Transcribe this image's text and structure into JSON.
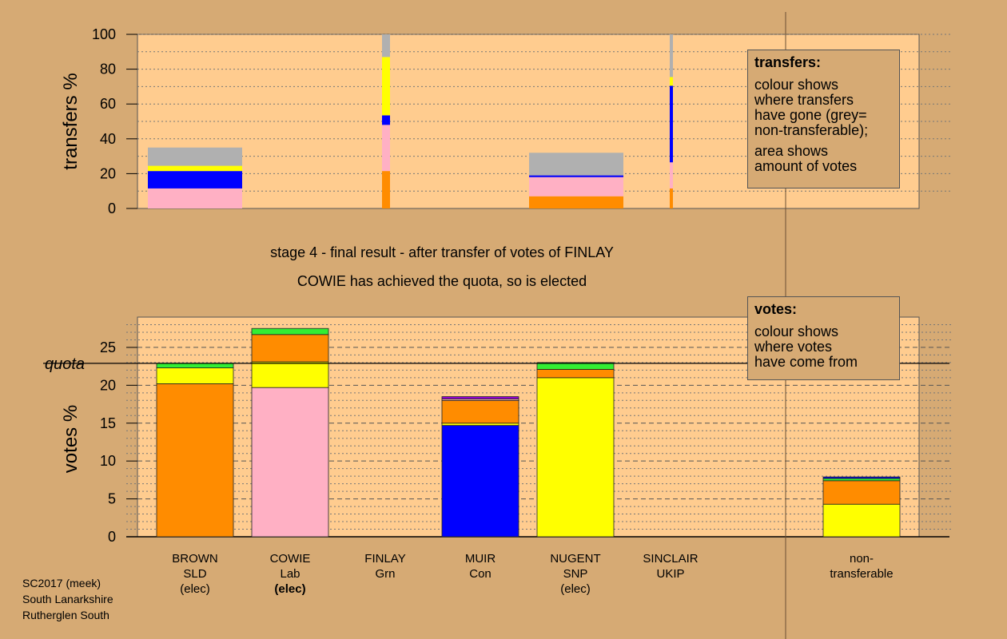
{
  "chart_data": [
    {
      "id": "transfers",
      "type": "bar",
      "ylabel": "transfers %",
      "ylim": [
        0,
        100
      ],
      "yticks": [
        0,
        20,
        40,
        60,
        80,
        100
      ],
      "blocks": [
        {
          "name": "BROWN",
          "segments": [
            {
              "value": 11.5,
              "color": "#ffb0c4"
            },
            {
              "value": 10,
              "color": "#0000ff"
            },
            {
              "value": 3,
              "color": "#ffff00"
            },
            {
              "value": 10.5,
              "color": "#b0b0b0"
            }
          ]
        },
        {
          "name": "FINLAY",
          "segments": [
            {
              "value": 21.5,
              "color": "#ff8c00"
            },
            {
              "value": 26.5,
              "color": "#ffb0c4"
            },
            {
              "value": 5.5,
              "color": "#0000ff"
            },
            {
              "value": 33.5,
              "color": "#ffff00"
            },
            {
              "value": 13,
              "color": "#b0b0b0"
            }
          ]
        },
        {
          "name": "MUIR",
          "segments": [
            {
              "value": 7,
              "color": "#ff8c00"
            },
            {
              "value": 11,
              "color": "#ffb0c4"
            },
            {
              "value": 1,
              "color": "#0000ff"
            },
            {
              "value": 13,
              "color": "#b0b0b0"
            }
          ]
        },
        {
          "name": "SINCLAIR",
          "segments": [
            {
              "value": 11.5,
              "color": "#ff8c00"
            },
            {
              "value": 15,
              "color": "#ffb0c4"
            },
            {
              "value": 44,
              "color": "#0000ff"
            },
            {
              "value": 5,
              "color": "#ffff00"
            },
            {
              "value": 24.5,
              "color": "#b0b0b0"
            }
          ]
        }
      ]
    },
    {
      "id": "votes",
      "type": "bar",
      "ylabel": "votes %",
      "ylim": [
        0,
        29
      ],
      "yticks": [
        0,
        5,
        10,
        15,
        20,
        25
      ],
      "quota": 22.9,
      "quota_label": "quota",
      "categories": [
        "BROWN",
        "COWIE",
        "FINLAY",
        "MUIR",
        "NUGENT",
        "SINCLAIR",
        "non-transferable"
      ],
      "stacks": [
        {
          "name": "BROWN",
          "segments": [
            {
              "value": 20.2,
              "color": "#ff8c00"
            },
            {
              "value": 2.1,
              "color": "#ffff00"
            },
            {
              "value": 0.6,
              "color": "#33ee33"
            }
          ]
        },
        {
          "name": "COWIE",
          "segments": [
            {
              "value": 19.7,
              "color": "#ffb0c4"
            },
            {
              "value": 3.4,
              "color": "#ffff00"
            },
            {
              "value": 3.6,
              "color": "#ff8c00"
            },
            {
              "value": 0.8,
              "color": "#33ee33"
            }
          ]
        },
        {
          "name": "FINLAY",
          "segments": []
        },
        {
          "name": "MUIR",
          "segments": [
            {
              "value": 14.7,
              "color": "#0000ff"
            },
            {
              "value": 0.3,
              "color": "#ffff00"
            },
            {
              "value": 3.0,
              "color": "#ff8c00"
            },
            {
              "value": 0.2,
              "color": "#ffb0c4"
            },
            {
              "value": 0.3,
              "color": "#9400d3"
            }
          ]
        },
        {
          "name": "NUGENT",
          "segments": [
            {
              "value": 21.0,
              "color": "#ffff00"
            },
            {
              "value": 1.1,
              "color": "#ff8c00"
            },
            {
              "value": 0.9,
              "color": "#33ee33"
            }
          ]
        },
        {
          "name": "SINCLAIR",
          "segments": []
        },
        {
          "name": "non-transferable",
          "segments": [
            {
              "value": 4.3,
              "color": "#ffff00"
            },
            {
              "value": 3.1,
              "color": "#ff8c00"
            },
            {
              "value": 0.3,
              "color": "#33ee33"
            },
            {
              "value": 0.2,
              "color": "#0000ff"
            }
          ]
        }
      ]
    }
  ],
  "candidates": [
    {
      "name": "BROWN",
      "party": "SLD",
      "status": "(elec)",
      "bold": false
    },
    {
      "name": "COWIE",
      "party": "Lab",
      "status": "(elec)",
      "bold": true
    },
    {
      "name": "FINLAY",
      "party": "Grn",
      "status": "",
      "bold": false
    },
    {
      "name": "MUIR",
      "party": "Con",
      "status": "",
      "bold": false
    },
    {
      "name": "NUGENT",
      "party": "SNP",
      "status": "(elec)",
      "bold": false
    },
    {
      "name": "SINCLAIR",
      "party": "UKIP",
      "status": "",
      "bold": false
    }
  ],
  "nontransferable": {
    "line1": "non-",
    "line2": "transferable"
  },
  "stage_text": "stage 4 - final result - after transfer of votes of FINLAY",
  "elected_text": "COWIE has achieved the quota, so is elected",
  "legend_transfers": {
    "title": "transfers:",
    "line1": "colour shows\nwhere transfers\nhave gone (grey=\nnon-transferable);",
    "line2": "area shows\namount of votes"
  },
  "legend_votes": {
    "title": "votes:",
    "line1": "colour shows\nwhere votes\nhave come from"
  },
  "footer": [
    "SC2017 (meek)",
    "South Lanarkshire",
    "Rutherglen South"
  ],
  "colors": {
    "background": "#d6aa74",
    "plot_area": "#ffcc8f"
  }
}
